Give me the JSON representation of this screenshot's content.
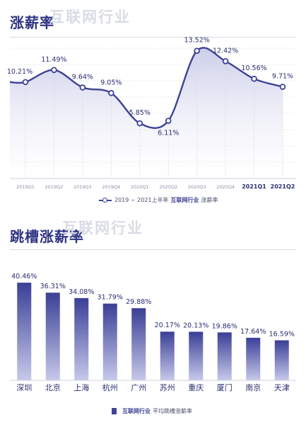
{
  "watermark": "互联网行业",
  "charts": {
    "salary": {
      "title": "涨薪率",
      "legend": {
        "period": "2019 ~ 2021上半年",
        "brand": "互联网行业",
        "label": "涨薪率"
      }
    },
    "jobhop": {
      "title": "跳槽涨薪率",
      "legend": {
        "brand": "互联网行业",
        "label": "平均跳槽涨薪率"
      }
    }
  },
  "colors": {
    "accent": "#3d4395",
    "title": "#2e3383",
    "area_top": "#c9cbe8",
    "bar_top": "#3a3f96",
    "bar_bottom": "#c7c9ea"
  },
  "chart_data": [
    {
      "type": "area",
      "title": "涨薪率",
      "categories": [
        "2019Q1",
        "2019Q2",
        "2019Q3",
        "2019Q4",
        "2020Q1",
        "2020Q2",
        "2020Q3",
        "2020Q4",
        "2021Q1",
        "2021Q2"
      ],
      "series": [
        {
          "name": "涨薪率",
          "values": [
            10.21,
            11.49,
            9.64,
            9.05,
            5.85,
            6.11,
            13.52,
            12.42,
            10.56,
            9.71
          ]
        }
      ],
      "data_labels": [
        "10.21%",
        "11.49%",
        "9.64%",
        "9.05%",
        "5.85%",
        "6.11%",
        "13.52%",
        "12.42%",
        "10.56%",
        "9.71%"
      ],
      "ylim": [
        0,
        15
      ],
      "grid": true,
      "legend_position": "bottom-center"
    },
    {
      "type": "bar",
      "title": "跳槽涨薪率",
      "categories": [
        "深圳",
        "北京",
        "上海",
        "杭州",
        "广州",
        "苏州",
        "重庆",
        "厦门",
        "南京",
        "天津"
      ],
      "values": [
        40.46,
        36.31,
        34.08,
        31.79,
        29.88,
        20.17,
        20.13,
        19.86,
        17.64,
        16.59
      ],
      "data_labels": [
        "40.46%",
        "36.31%",
        "34.08%",
        "31.79%",
        "29.88%",
        "20.17%",
        "20.13%",
        "19.86%",
        "17.64%",
        "16.59%"
      ],
      "ylim": [
        0,
        44
      ],
      "grid": false,
      "legend_position": "bottom-center"
    }
  ]
}
